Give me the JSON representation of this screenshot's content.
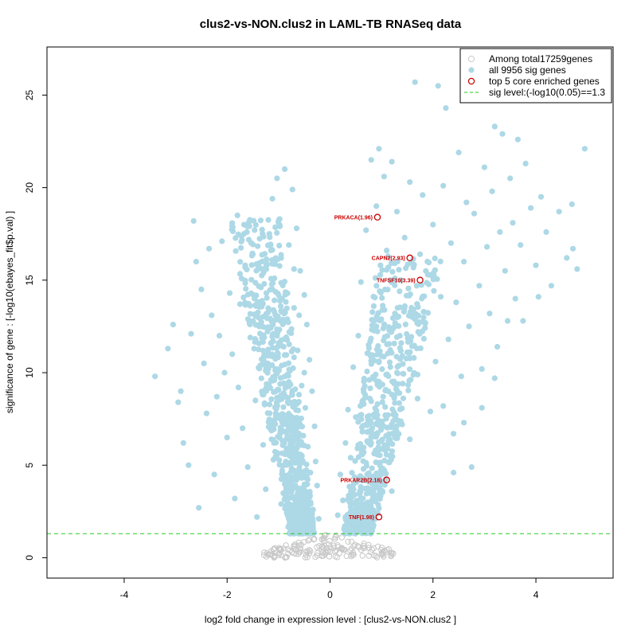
{
  "chart_data": {
    "type": "scatter",
    "title": "clus2-vs-NON.clus2 in LAML-TB RNASeq data",
    "xlabel": "log2 fold change in expression level : [clus2-vs-NON.clus2 ]",
    "ylabel": "significance of gene : [-log10(ebayes_fit$p.val) ]",
    "xlim": [
      -5.5,
      5.5
    ],
    "ylim": [
      -1.1,
      27.6
    ],
    "x_ticks": [
      -4,
      -2,
      0,
      2,
      4
    ],
    "y_ticks": [
      0,
      5,
      10,
      15,
      20,
      25
    ],
    "threshold": 1.3,
    "legend": {
      "position": "top-right",
      "entries": [
        "Among total17259genes",
        "all 9956 sig genes",
        "top 5 core enriched genes",
        "sig level:(-log10(0.05)==1.3"
      ]
    },
    "colors": {
      "nonsig": "#c8c8c8",
      "sig": "#add8e6",
      "core": "#cc0000",
      "threshold": "#22cc22"
    },
    "core_genes": [
      {
        "label": "PRKACA(1.96)",
        "x": 0.92,
        "y": 18.4
      },
      {
        "label": "CAPN2(2.93)",
        "x": 1.55,
        "y": 16.2
      },
      {
        "label": "TNFSF10(3.39)",
        "x": 1.75,
        "y": 15.0
      },
      {
        "label": "PRKAR2B(2.18)",
        "x": 1.1,
        "y": 4.2
      },
      {
        "label": "TNF(1.98)",
        "x": 0.95,
        "y": 2.2
      }
    ],
    "sig_points": [
      [
        -3.4,
        9.8
      ],
      [
        -3.15,
        11.3
      ],
      [
        -3.05,
        12.6
      ],
      [
        -2.95,
        8.4
      ],
      [
        -2.85,
        6.2
      ],
      [
        -2.9,
        9.0
      ],
      [
        -2.7,
        12.1
      ],
      [
        -2.75,
        5.0
      ],
      [
        -2.65,
        18.2
      ],
      [
        -2.6,
        16.0
      ],
      [
        -2.55,
        2.7
      ],
      [
        -2.5,
        14.5
      ],
      [
        -2.45,
        10.5
      ],
      [
        -2.4,
        7.8
      ],
      [
        -2.35,
        16.7
      ],
      [
        -2.3,
        13.1
      ],
      [
        -2.25,
        4.5
      ],
      [
        -2.2,
        8.7
      ],
      [
        -2.15,
        12.0
      ],
      [
        -2.1,
        17.1
      ],
      [
        -2.05,
        10.0
      ],
      [
        -2.0,
        6.5
      ],
      [
        -1.95,
        14.3
      ],
      [
        -1.9,
        11.0
      ],
      [
        -1.85,
        3.2
      ],
      [
        -1.8,
        18.5
      ],
      [
        -1.78,
        9.2
      ],
      [
        -1.75,
        13.7
      ],
      [
        -1.7,
        7.0
      ],
      [
        -1.65,
        15.7
      ],
      [
        -1.6,
        4.9
      ],
      [
        -1.55,
        11.9
      ],
      [
        -1.5,
        16.4
      ],
      [
        -1.45,
        8.5
      ],
      [
        -1.42,
        2.2
      ],
      [
        -1.4,
        13.0
      ],
      [
        -1.35,
        10.4
      ],
      [
        -1.3,
        6.1
      ],
      [
        -1.28,
        14.8
      ],
      [
        -1.25,
        3.7
      ],
      [
        -1.2,
        12.4
      ],
      [
        -1.18,
        17.5
      ],
      [
        -1.15,
        9.6
      ],
      [
        -1.12,
        19.4
      ],
      [
        -1.1,
        5.3
      ],
      [
        -1.08,
        15.1
      ],
      [
        -1.05,
        7.7
      ],
      [
        -1.03,
        20.5
      ],
      [
        -1.0,
        11.6
      ],
      [
        -0.98,
        18.3
      ],
      [
        -0.95,
        2.9
      ],
      [
        -0.93,
        14.0
      ],
      [
        -0.9,
        8.9
      ],
      [
        -0.88,
        21.0
      ],
      [
        -0.85,
        12.8
      ],
      [
        -0.83,
        6.6
      ],
      [
        -0.8,
        16.9
      ],
      [
        -0.78,
        10.1
      ],
      [
        -0.75,
        4.3
      ],
      [
        -0.73,
        19.9
      ],
      [
        -0.7,
        13.5
      ],
      [
        -0.68,
        7.4
      ],
      [
        -0.65,
        17.8
      ],
      [
        -0.63,
        11.2
      ],
      [
        -0.6,
        5.6
      ],
      [
        -0.58,
        15.5
      ],
      [
        -0.55,
        9.3
      ],
      [
        -0.53,
        3.4
      ],
      [
        -0.5,
        14.2
      ],
      [
        -0.48,
        8.1
      ],
      [
        -0.45,
        12.6
      ],
      [
        -0.43,
        6.0
      ],
      [
        -0.4,
        10.7
      ],
      [
        -0.38,
        4.6
      ],
      [
        -0.35,
        9.0
      ],
      [
        -0.33,
        2.6
      ],
      [
        -0.3,
        7.1
      ],
      [
        -0.28,
        5.2
      ],
      [
        -0.25,
        3.9
      ],
      [
        -0.22,
        2.1
      ],
      [
        -1.1,
        12.1
      ],
      [
        -0.95,
        16.2
      ],
      [
        -0.7,
        15.6
      ],
      [
        -0.6,
        13.1
      ],
      [
        -0.9,
        11.4
      ],
      [
        -0.5,
        10.0
      ],
      [
        -0.8,
        9.5
      ],
      [
        -0.65,
        8.3
      ],
      [
        0.15,
        2.3
      ],
      [
        0.2,
        4.5
      ],
      [
        0.25,
        3.1
      ],
      [
        0.3,
        6.2
      ],
      [
        0.35,
        8.0
      ],
      [
        0.4,
        5.4
      ],
      [
        0.45,
        10.3
      ],
      [
        0.5,
        7.6
      ],
      [
        0.55,
        12.0
      ],
      [
        0.58,
        3.6
      ],
      [
        0.6,
        14.9
      ],
      [
        0.65,
        9.1
      ],
      [
        0.7,
        17.7
      ],
      [
        0.72,
        6.8
      ],
      [
        0.75,
        11.5
      ],
      [
        0.8,
        21.5
      ],
      [
        0.82,
        4.0
      ],
      [
        0.85,
        13.6
      ],
      [
        0.9,
        19.0
      ],
      [
        0.92,
        8.3
      ],
      [
        0.95,
        22.1
      ],
      [
        0.98,
        15.8
      ],
      [
        1.0,
        10.9
      ],
      [
        1.05,
        20.6
      ],
      [
        1.08,
        5.9
      ],
      [
        1.1,
        16.6
      ],
      [
        1.15,
        12.3
      ],
      [
        1.2,
        21.4
      ],
      [
        1.25,
        9.4
      ],
      [
        1.3,
        18.7
      ],
      [
        1.35,
        14.4
      ],
      [
        1.4,
        7.2
      ],
      [
        1.45,
        17.3
      ],
      [
        1.5,
        11.1
      ],
      [
        1.55,
        20.3
      ],
      [
        1.6,
        13.0
      ],
      [
        1.65,
        25.7
      ],
      [
        1.7,
        8.6
      ],
      [
        1.75,
        16.4
      ],
      [
        1.8,
        19.6
      ],
      [
        1.85,
        12.7
      ],
      [
        1.9,
        15.3
      ],
      [
        1.95,
        7.9
      ],
      [
        2.0,
        18.0
      ],
      [
        2.05,
        10.6
      ],
      [
        2.1,
        25.5
      ],
      [
        2.15,
        14.1
      ],
      [
        2.2,
        20.1
      ],
      [
        2.25,
        24.3
      ],
      [
        2.3,
        11.8
      ],
      [
        2.35,
        17.0
      ],
      [
        2.4,
        6.7
      ],
      [
        2.45,
        13.8
      ],
      [
        2.5,
        21.9
      ],
      [
        2.55,
        9.8
      ],
      [
        2.6,
        16.0
      ],
      [
        2.65,
        19.2
      ],
      [
        2.7,
        12.5
      ],
      [
        2.75,
        4.9
      ],
      [
        2.8,
        18.6
      ],
      [
        2.85,
        25.2
      ],
      [
        2.9,
        14.7
      ],
      [
        2.95,
        10.2
      ],
      [
        3.0,
        21.1
      ],
      [
        3.05,
        16.8
      ],
      [
        3.1,
        13.2
      ],
      [
        3.15,
        19.8
      ],
      [
        3.2,
        23.3
      ],
      [
        3.25,
        11.4
      ],
      [
        3.3,
        17.6
      ],
      [
        3.35,
        22.9
      ],
      [
        3.4,
        15.5
      ],
      [
        3.45,
        12.8
      ],
      [
        3.5,
        20.5
      ],
      [
        3.55,
        18.1
      ],
      [
        3.6,
        14.0
      ],
      [
        3.65,
        22.6
      ],
      [
        3.7,
        16.9
      ],
      [
        3.75,
        12.8
      ],
      [
        3.8,
        21.3
      ],
      [
        3.9,
        18.9
      ],
      [
        4.0,
        15.8
      ],
      [
        4.1,
        19.5
      ],
      [
        4.2,
        17.6
      ],
      [
        4.3,
        14.7
      ],
      [
        4.45,
        18.7
      ],
      [
        4.6,
        16.2
      ],
      [
        4.7,
        19.1
      ],
      [
        4.8,
        15.6
      ],
      [
        4.95,
        22.1
      ],
      [
        4.72,
        16.7
      ],
      [
        4.05,
        14.1
      ],
      [
        3.2,
        9.7
      ],
      [
        2.95,
        8.1
      ],
      [
        2.6,
        7.3
      ],
      [
        2.4,
        4.6
      ],
      [
        1.3,
        10.0
      ],
      [
        0.9,
        12.5
      ],
      [
        1.7,
        9.9
      ],
      [
        2.2,
        8.2
      ],
      [
        1.55,
        6.4
      ],
      [
        1.2,
        3.6
      ],
      [
        0.8,
        6.2
      ],
      [
        0.65,
        4.8
      ]
    ]
  }
}
